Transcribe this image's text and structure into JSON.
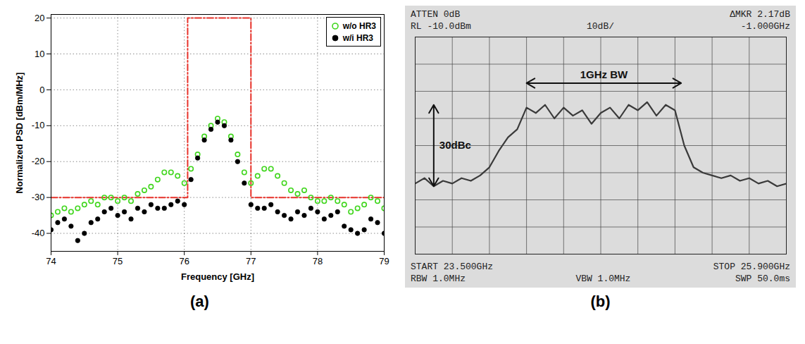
{
  "chart_data": [
    {
      "type": "scatter",
      "panel": "(a)",
      "x_label": "Frequency [GHz]",
      "y_label": "Normalized PSD [dBm/MHz]",
      "x": [
        74,
        74.1,
        74.2,
        74.3,
        74.4,
        74.5,
        74.6,
        74.7,
        74.8,
        74.9,
        75,
        75.1,
        75.2,
        75.3,
        75.4,
        75.5,
        75.6,
        75.7,
        75.8,
        75.9,
        76,
        76.1,
        76.2,
        76.3,
        76.4,
        76.5,
        76.6,
        76.7,
        76.8,
        76.9,
        77,
        77.1,
        77.2,
        77.3,
        77.4,
        77.5,
        77.6,
        77.7,
        77.8,
        77.9,
        78,
        78.1,
        78.2,
        78.3,
        78.4,
        78.5,
        78.6,
        78.7,
        78.8,
        78.9,
        79
      ],
      "series": [
        {
          "name": "w/o HR3",
          "color": "#3fd61c",
          "marker": "open_circle",
          "values": [
            -35,
            -34,
            -33,
            -34,
            -33,
            -32,
            -31,
            -32,
            -30,
            -30,
            -31,
            -30,
            -31,
            -29,
            -28,
            -27,
            -25,
            -23,
            -23,
            -24,
            -26,
            -22,
            -18,
            -13,
            -10,
            -8,
            -9,
            -13,
            -18,
            -23,
            -26,
            -24,
            -22,
            -22,
            -24,
            -26,
            -28,
            -29,
            -28,
            -30,
            -31,
            -31,
            -30,
            -31,
            -32,
            -34,
            -33,
            -32,
            -30,
            -31,
            -33
          ]
        },
        {
          "name": "w/i HR3",
          "color": "#000000",
          "marker": "circle",
          "values": [
            -39,
            -37,
            -36,
            -38,
            -42,
            -40,
            -37,
            -36,
            -34,
            -33,
            -35,
            -34,
            -36,
            -33,
            -34,
            -32,
            -33,
            -33,
            -32,
            -31,
            -32,
            -25,
            -19,
            -14,
            -11,
            -9,
            -10,
            -14,
            -20,
            -26,
            -32,
            -33,
            -33,
            -32,
            -34,
            -35,
            -36,
            -34,
            -35,
            -33,
            -34,
            -36,
            -35,
            -34,
            -38,
            -39,
            -40,
            -39,
            -36,
            -37,
            -40
          ]
        }
      ],
      "mask": {
        "x": [
          74,
          76.05,
          76.05,
          77,
          77,
          79
        ],
        "y": [
          -30,
          -30,
          20,
          20,
          -30,
          -30
        ],
        "color": "#e8322a",
        "line_style": "dashdot"
      },
      "xlim": [
        74,
        79
      ],
      "xticks": [
        74,
        75,
        76,
        77,
        78,
        79
      ],
      "ylim": [
        -45,
        21
      ],
      "yticks": [
        -40,
        -30,
        -20,
        -10,
        0,
        10,
        20
      ],
      "grid": true,
      "legend": "top-right"
    },
    {
      "type": "line",
      "panel": "(b)",
      "screen_text": {
        "top_left": [
          "ATTEN 0dB",
          "RL -10.0dBm"
        ],
        "top_center": "10dB/",
        "top_right": [
          "ΔMKR 2.17dB",
          "-1.000GHz"
        ],
        "bottom_left": [
          "START 23.500GHz",
          "RBW 1.0MHz"
        ],
        "bottom_center": "VBW 1.0MHz",
        "bottom_right": [
          "STOP 25.900GHz",
          "SWP 50.0ms"
        ]
      },
      "x": [
        23.5,
        23.56,
        23.62,
        23.68,
        23.74,
        23.8,
        23.86,
        23.92,
        23.98,
        24.04,
        24.1,
        24.16,
        24.22,
        24.28,
        24.34,
        24.4,
        24.46,
        24.52,
        24.58,
        24.64,
        24.7,
        24.76,
        24.82,
        24.88,
        24.94,
        25,
        25.06,
        25.12,
        25.18,
        25.24,
        25.3,
        25.36,
        25.42,
        25.48,
        25.54,
        25.6,
        25.66,
        25.72,
        25.78,
        25.84,
        25.9
      ],
      "values": [
        -64,
        -62,
        -65,
        -63,
        -64,
        -62,
        -63,
        -61,
        -58,
        -52,
        -47,
        -44,
        -36,
        -38,
        -35,
        -40,
        -36,
        -39,
        -37,
        -42,
        -38,
        -36,
        -40,
        -35,
        -37,
        -34,
        -39,
        -35,
        -37,
        -50,
        -58,
        -60,
        -61,
        -62,
        -61,
        -63,
        -62,
        -64,
        -63,
        -65,
        -64
      ],
      "color": "#3a3a3a",
      "annotations": [
        {
          "text": "1GHz BW",
          "x": [
            24.22,
            25.22
          ],
          "y": -27
        },
        {
          "text": "30dBc",
          "x": 23.62,
          "y": [
            -65,
            -35
          ]
        }
      ],
      "xlim": [
        23.5,
        25.9
      ],
      "xticks": [
        23.5,
        23.74,
        23.98,
        24.22,
        24.46,
        24.7,
        24.94,
        25.18,
        25.42,
        25.66,
        25.9
      ],
      "ylim": [
        -90,
        -10
      ],
      "yticks": [
        -90,
        -80,
        -70,
        -60,
        -50,
        -40,
        -30,
        -20,
        -10
      ],
      "grid": true,
      "tick_labels": false
    }
  ]
}
